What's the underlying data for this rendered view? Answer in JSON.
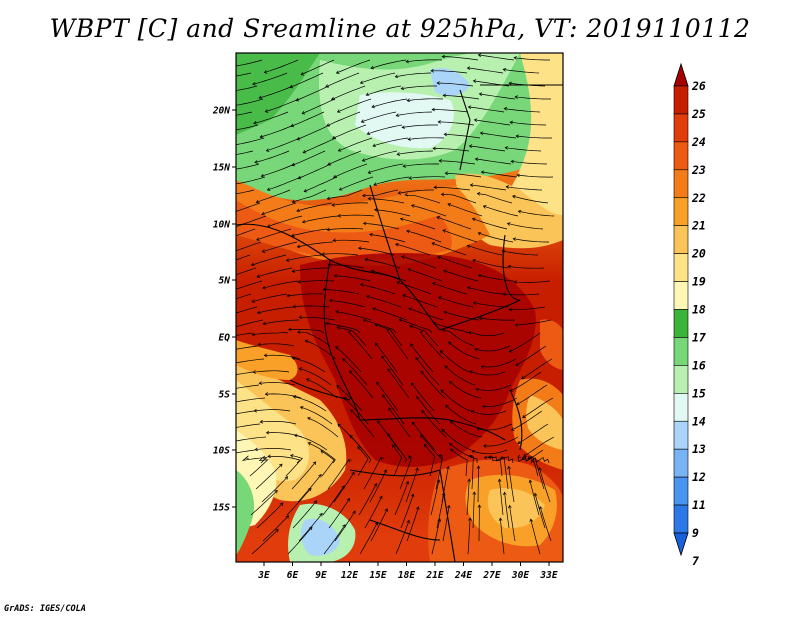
{
  "title": "WBPT [C] and Sreamline at 925hPa, VT: 2019110112",
  "credit": "GrADS: IGES/COLA",
  "map": {
    "lat_ticks": [
      "20N",
      "15N",
      "10N",
      "5N",
      "EQ",
      "5S",
      "10S",
      "15S"
    ],
    "lon_ticks": [
      "3E",
      "6E",
      "9E",
      "12E",
      "15E",
      "18E",
      "21E",
      "24E",
      "27E",
      "30E",
      "33E"
    ]
  },
  "colorbar": {
    "levels": [
      "26",
      "25",
      "24",
      "23",
      "22",
      "21",
      "20",
      "19",
      "18",
      "17",
      "16",
      "15",
      "14",
      "13",
      "12",
      "11",
      "9",
      "7"
    ],
    "colors": [
      "#a50000",
      "#c81e00",
      "#e03c0c",
      "#ec5a14",
      "#f47c18",
      "#f8a028",
      "#fbc458",
      "#fde288",
      "#fdf6b4",
      "#3cb43c",
      "#78d778",
      "#b8f0b0",
      "#e2f8f2",
      "#aad4f8",
      "#78b4f4",
      "#4894ee",
      "#2c78e6",
      "#1a5fdc"
    ]
  }
}
